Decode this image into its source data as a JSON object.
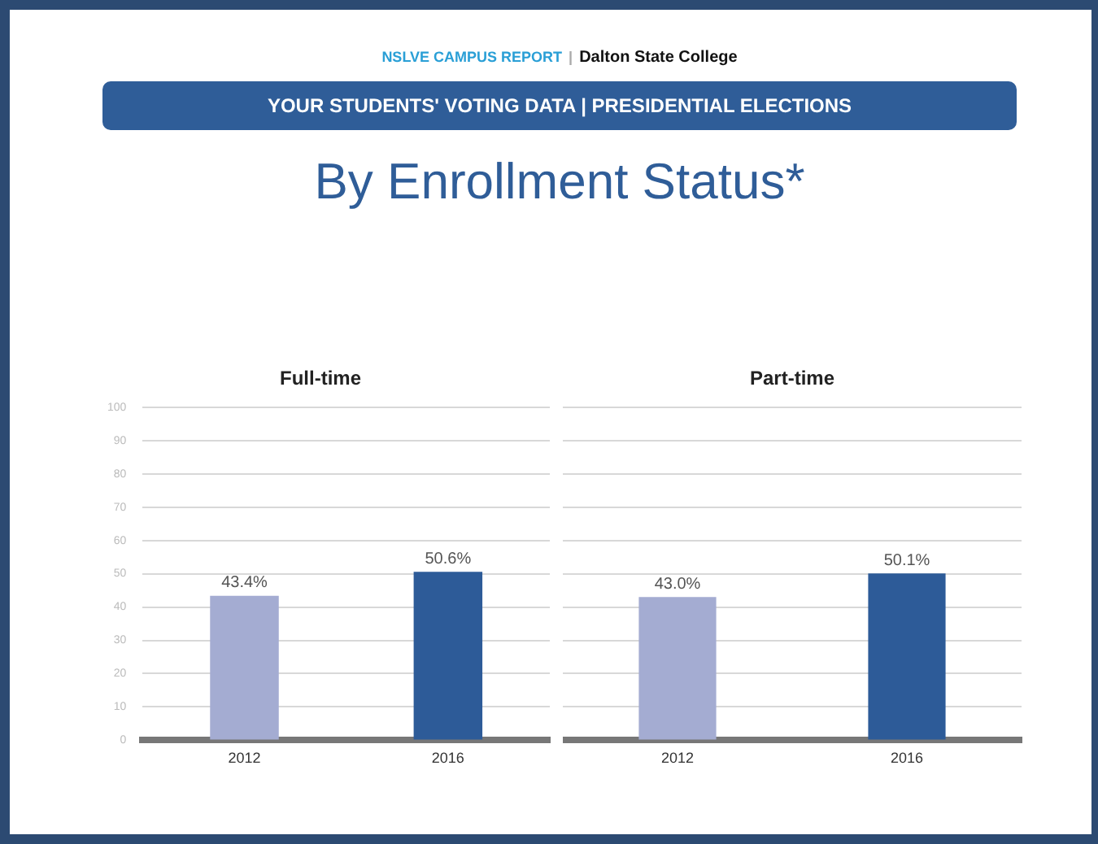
{
  "chart_data": [
    {
      "type": "other",
      "title": "By Enrollment Status*",
      "subtitle": "YOUR STUDENTS' VOTING DATA | PRESIDENTIAL ELECTIONS",
      "annotations": [
        "NSLVE CAMPUS REPORT",
        "|",
        "Dalton State College"
      ]
    },
    {
      "type": "bar",
      "title": "Full-time",
      "categories": [
        "2012",
        "2016"
      ],
      "values": [
        43.4,
        50.6
      ],
      "colors": [
        "#a4acd2",
        "#2d5b98"
      ],
      "value_labels": [
        "43.4%",
        "50.6%"
      ],
      "ylim": [
        0,
        100
      ],
      "yticks": [
        0,
        10,
        20,
        30,
        40,
        50,
        60,
        70,
        80,
        90,
        100
      ],
      "grid": "y"
    },
    {
      "type": "bar",
      "title": "Part-time",
      "categories": [
        "2012",
        "2016"
      ],
      "values": [
        43.0,
        50.1
      ],
      "colors": [
        "#a4acd2",
        "#2d5b98"
      ],
      "value_labels": [
        "43.0%",
        "50.1%"
      ],
      "ylim": [
        0,
        100
      ],
      "yticks": [
        0,
        10,
        20,
        30,
        40,
        50,
        60,
        70,
        80,
        90,
        100
      ],
      "grid": "y",
      "tick_labels": "x"
    }
  ]
}
